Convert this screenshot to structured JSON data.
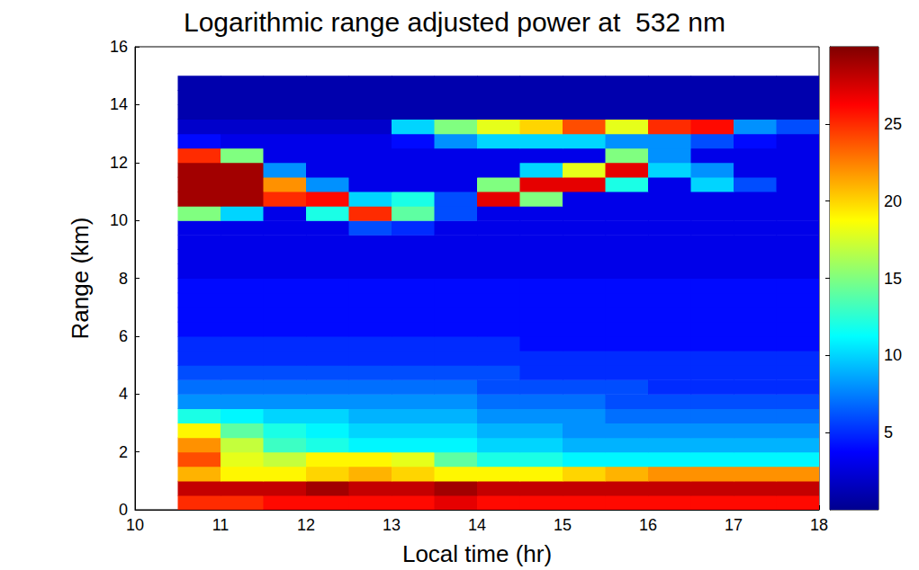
{
  "chart_data": {
    "type": "heatmap",
    "title": "Logarithmic range adjusted power at  532 nm",
    "x_label": "Local time (hr)",
    "y_label": "Range (km)",
    "xlim": [
      10,
      18
    ],
    "xticks": [
      10,
      11,
      12,
      13,
      14,
      15,
      16,
      17,
      18
    ],
    "ylim": [
      0,
      16
    ],
    "yticks": [
      0,
      2,
      4,
      6,
      8,
      10,
      12,
      14,
      16
    ],
    "grid": false,
    "x": [
      10.75,
      11.25,
      11.75,
      12.25,
      12.75,
      13.25,
      13.75,
      14.25,
      14.75,
      15.25,
      15.75,
      16.25,
      16.75,
      17.25,
      17.75
    ],
    "y": [
      0.25,
      0.75,
      1.25,
      1.75,
      2.25,
      2.75,
      3.25,
      3.75,
      4.25,
      4.75,
      5.25,
      5.75,
      6.25,
      6.75,
      7.25,
      7.75,
      8.25,
      8.75,
      9.25,
      9.75,
      10.25,
      10.75,
      11.25,
      11.75,
      12.25,
      12.75,
      13.25,
      13.75,
      14.25,
      14.75
    ],
    "cells": [
      [
        25,
        25,
        26,
        26,
        26,
        26,
        27,
        26,
        26,
        26,
        26,
        26,
        26,
        26,
        26
      ],
      [
        28,
        28,
        28,
        29,
        28,
        28,
        29,
        28,
        28,
        28,
        28,
        28,
        28,
        28,
        28
      ],
      [
        21,
        19,
        19,
        20,
        21,
        20,
        19,
        19,
        19,
        20,
        21,
        22,
        22,
        22,
        22
      ],
      [
        24,
        18,
        17,
        19,
        19,
        18,
        14,
        12,
        12,
        11,
        11,
        11,
        11,
        11,
        11
      ],
      [
        22,
        17,
        13,
        12,
        11,
        11,
        11,
        10,
        10,
        9,
        9,
        9,
        9,
        9,
        9
      ],
      [
        19,
        14,
        12,
        11,
        10,
        10,
        10,
        9,
        9,
        8,
        8,
        8,
        8,
        8,
        8
      ],
      [
        12,
        11,
        10,
        10,
        9,
        9,
        9,
        8,
        8,
        8,
        7,
        7,
        7,
        7,
        7
      ],
      [
        8,
        8,
        8,
        8,
        8,
        8,
        8,
        7,
        7,
        7,
        6,
        6,
        6,
        6,
        6
      ],
      [
        7,
        7,
        7,
        7,
        7,
        7,
        7,
        6,
        6,
        6,
        6,
        5,
        5,
        5,
        5
      ],
      [
        6,
        6,
        6,
        6,
        6,
        6,
        6,
        6,
        5,
        5,
        5,
        5,
        5,
        5,
        5
      ],
      [
        5,
        5,
        5,
        5,
        5,
        5,
        5,
        5,
        5,
        5,
        5,
        5,
        5,
        5,
        5
      ],
      [
        5,
        5,
        5,
        5,
        5,
        5,
        5,
        5,
        4,
        4,
        4,
        4,
        4,
        4,
        4
      ],
      [
        4,
        4,
        4,
        4,
        4,
        4,
        4,
        4,
        4,
        4,
        4,
        4,
        4,
        4,
        4
      ],
      [
        4,
        4,
        4,
        4,
        4,
        4,
        4,
        4,
        4,
        4,
        4,
        4,
        4,
        4,
        4
      ],
      [
        4,
        4,
        4,
        4,
        4,
        4,
        4,
        4,
        4,
        4,
        4,
        4,
        4,
        4,
        4
      ],
      [
        4,
        4,
        4,
        4,
        4,
        4,
        4,
        4,
        4,
        4,
        4,
        4,
        4,
        4,
        4
      ],
      [
        3,
        3,
        3,
        3,
        3,
        3,
        3,
        3,
        3,
        3,
        3,
        3,
        3,
        3,
        3
      ],
      [
        3,
        3,
        3,
        3,
        3,
        3,
        3,
        3,
        3,
        3,
        3,
        3,
        3,
        3,
        3
      ],
      [
        3,
        3,
        3,
        3,
        3,
        3,
        3,
        3,
        3,
        3,
        3,
        3,
        3,
        3,
        3
      ],
      [
        3,
        3,
        3,
        3,
        6,
        5,
        3,
        3,
        3,
        3,
        3,
        3,
        3,
        3,
        3
      ],
      [
        15,
        10,
        3,
        12,
        25,
        14,
        6,
        3,
        3,
        3,
        3,
        3,
        3,
        3,
        3
      ],
      [
        29,
        29,
        25,
        26,
        10,
        12,
        6,
        27,
        15,
        3,
        3,
        3,
        3,
        3,
        3
      ],
      [
        29,
        29,
        22,
        8,
        3,
        3,
        3,
        15,
        27,
        27,
        12,
        3,
        10,
        6,
        3
      ],
      [
        29,
        29,
        8,
        3,
        3,
        3,
        3,
        3,
        10,
        18,
        27,
        10,
        8,
        3,
        3
      ],
      [
        25,
        15,
        3,
        3,
        3,
        3,
        3,
        3,
        3,
        3,
        15,
        8,
        3,
        3,
        3
      ],
      [
        4,
        3,
        3,
        3,
        3,
        4,
        8,
        10,
        10,
        10,
        8,
        8,
        6,
        4,
        3
      ],
      [
        2,
        2,
        2,
        2,
        2,
        10,
        15,
        18,
        20,
        24,
        18,
        25,
        26,
        8,
        6
      ],
      [
        1,
        1,
        1,
        1,
        1,
        1,
        1,
        1,
        1,
        1,
        1,
        1,
        1,
        1,
        1
      ],
      [
        1,
        1,
        1,
        1,
        1,
        1,
        1,
        1,
        1,
        1,
        1,
        1,
        1,
        1,
        1
      ],
      [
        1,
        1,
        1,
        1,
        1,
        1,
        1,
        1,
        1,
        1,
        1,
        1,
        1,
        1,
        1
      ]
    ],
    "colorbar_range": [
      0,
      30
    ],
    "colorbar_ticks": [
      5,
      10,
      15,
      20,
      25
    ]
  }
}
